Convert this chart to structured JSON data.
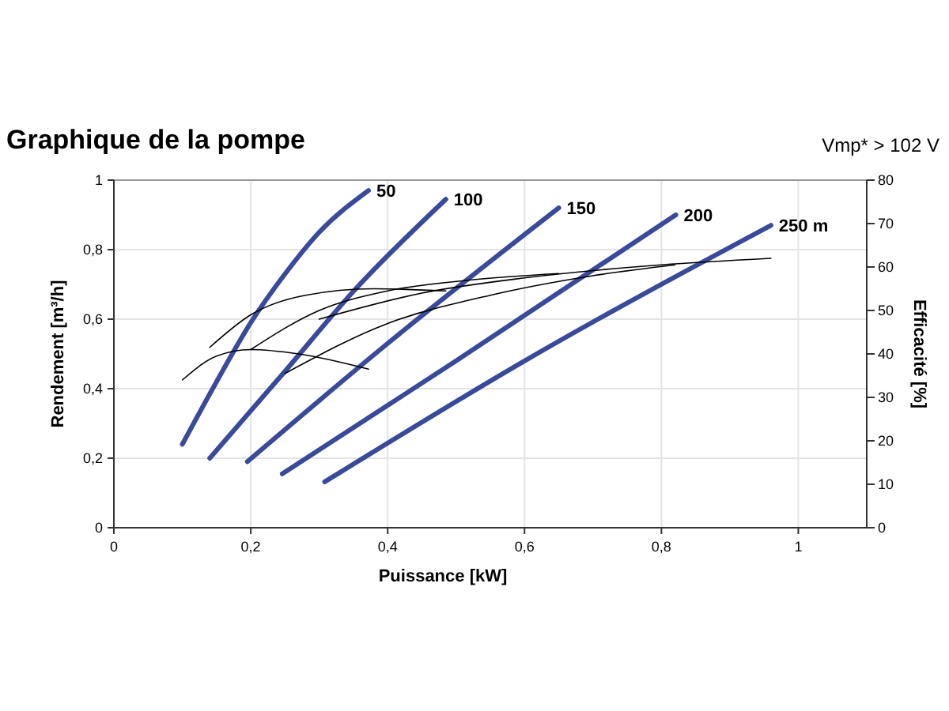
{
  "chart_data": {
    "type": "line",
    "title": "Graphique de la pompe",
    "subtitle": "Vmp* > 102 V",
    "xlabel": "Puissance [kW]",
    "ylabel": "Rendement [m³/h]",
    "y2label": "Efficacité [%]",
    "xlim": [
      0,
      1.1
    ],
    "xticks": [
      0,
      {
        "value": 0.2,
        "label": "0,2"
      },
      {
        "value": 0.4,
        "label": "0,4"
      },
      {
        "value": 0.6,
        "label": "0,6"
      },
      {
        "value": 0.8,
        "label": "0,8"
      },
      1
    ],
    "ylim": [
      0,
      1
    ],
    "yticks": [
      0,
      {
        "value": 0.2,
        "label": "0,2"
      },
      {
        "value": 0.4,
        "label": "0,4"
      },
      {
        "value": 0.6,
        "label": "0,6"
      },
      {
        "value": 0.8,
        "label": "0,8"
      },
      1
    ],
    "y2lim": [
      0,
      80
    ],
    "y2ticks": [
      0,
      10,
      20,
      30,
      40,
      50,
      60,
      70,
      80
    ],
    "grid": true,
    "marker": "none",
    "line_style": "solid",
    "series": [
      {
        "name": "50",
        "color": "#3a4a9a",
        "x": [
          0.1,
          0.15,
          0.2,
          0.25,
          0.3,
          0.372
        ],
        "values": [
          0.24,
          0.42,
          0.59,
          0.73,
          0.85,
          0.97
        ]
      },
      {
        "name": "100",
        "color": "#3a4a9a",
        "x": [
          0.14,
          0.25,
          0.35,
          0.485
        ],
        "values": [
          0.2,
          0.45,
          0.68,
          0.945
        ]
      },
      {
        "name": "150",
        "color": "#3a4a9a",
        "x": [
          0.195,
          0.4,
          0.65
        ],
        "values": [
          0.19,
          0.53,
          0.92
        ]
      },
      {
        "name": "200",
        "color": "#3a4a9a",
        "x": [
          0.246,
          0.5,
          0.821
        ],
        "values": [
          0.155,
          0.48,
          0.9
        ]
      },
      {
        "name": "250 m",
        "color": "#3a4a9a",
        "x": [
          0.308,
          0.6,
          0.96
        ],
        "values": [
          0.132,
          0.48,
          0.87
        ]
      },
      {
        "color": "#000000",
        "axis": "y2",
        "x": [
          0.1,
          0.15,
          0.2,
          0.27,
          0.372
        ],
        "values": [
          34,
          39.5,
          41,
          40,
          36.5
        ]
      },
      {
        "color": "#000000",
        "axis": "y2",
        "x": [
          0.14,
          0.2,
          0.28,
          0.38,
          0.485
        ],
        "values": [
          41.5,
          49,
          53.5,
          55,
          54.5
        ]
      },
      {
        "color": "#000000",
        "axis": "y2",
        "x": [
          0.2,
          0.3,
          0.4,
          0.52,
          0.65
        ],
        "values": [
          41,
          50,
          54.5,
          57,
          58.5
        ]
      },
      {
        "color": "#000000",
        "axis": "y2",
        "x": [
          0.25,
          0.4,
          0.55,
          0.7,
          0.82
        ],
        "values": [
          35.5,
          47,
          53.5,
          58,
          60.5
        ]
      },
      {
        "color": "#000000",
        "axis": "y2",
        "x": [
          0.3,
          0.45,
          0.6,
          0.8,
          0.96
        ],
        "values": [
          48,
          54,
          57.5,
          60.5,
          62
        ]
      }
    ]
  }
}
